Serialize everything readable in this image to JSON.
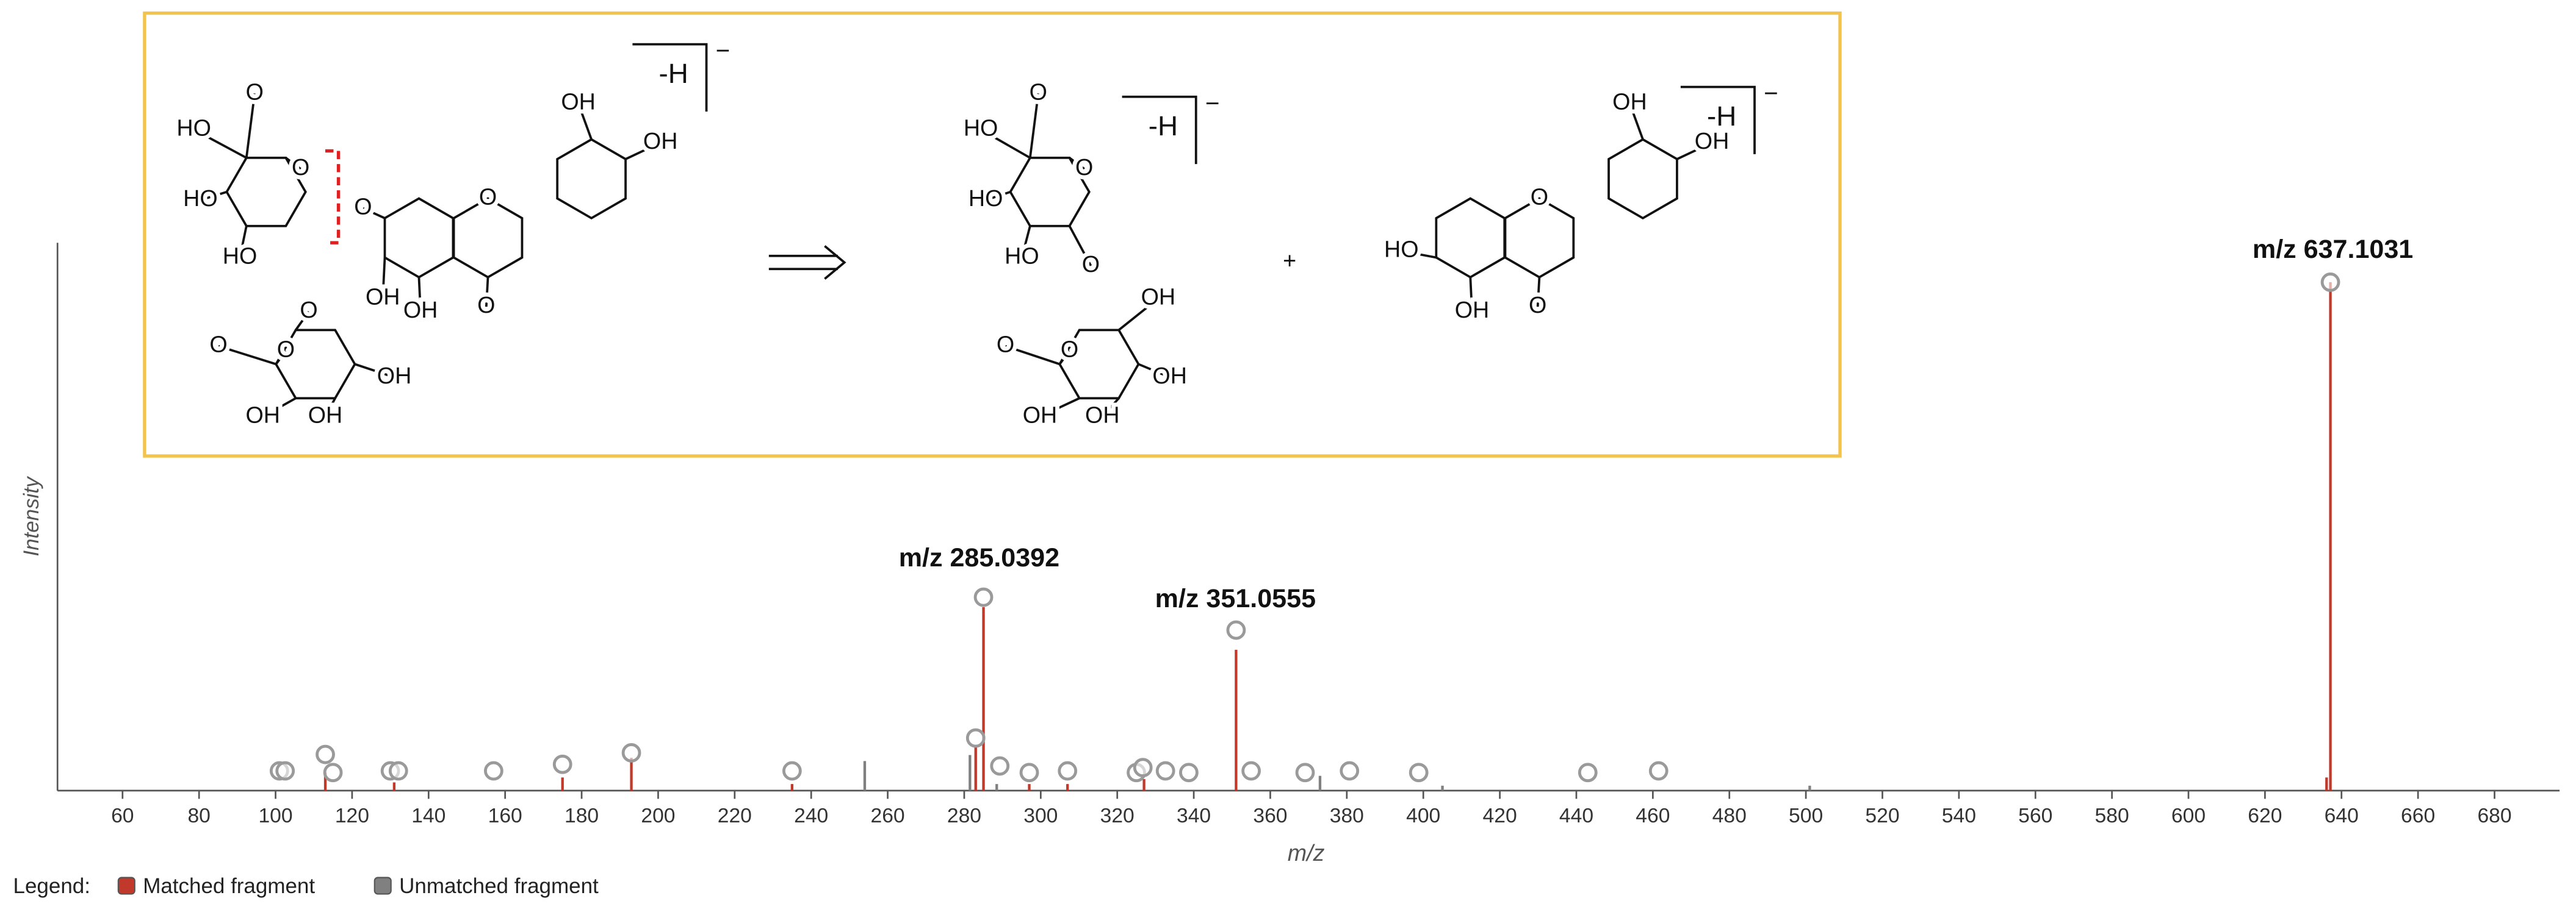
{
  "chart_data": {
    "type": "bar",
    "x_label": "m/z",
    "y_label": "Intensity",
    "xlim": [
      43,
      697
    ],
    "ylim": [
      0,
      100
    ],
    "xticks": [
      60,
      80,
      100,
      120,
      140,
      160,
      180,
      200,
      220,
      240,
      260,
      280,
      300,
      320,
      340,
      360,
      380,
      400,
      420,
      440,
      460,
      480,
      500,
      520,
      540,
      560,
      580,
      600,
      620,
      640,
      660,
      680
    ],
    "series": [
      {
        "name": "Matched fragment",
        "color": "#c0392b",
        "x": [
          113.0,
          131.0,
          175.0,
          193.0,
          235.0,
          283.0,
          285.04,
          297.0,
          307.0,
          327.0,
          351.06,
          636.1,
          637.1
        ],
        "values": [
          3.3,
          1.5,
          2.4,
          6.0,
          1.2,
          8.1,
          33.5,
          1.2,
          1.2,
          2.1,
          25.7,
          2.4,
          92.8
        ]
      },
      {
        "name": "Unmatched fragment",
        "color": "#808080",
        "x": [
          254.0,
          281.5,
          288.5,
          373.0,
          405.0,
          501.0
        ],
        "values": [
          5.4,
          6.5,
          1.2,
          2.7,
          0.9,
          0.9
        ]
      }
    ],
    "markers": {
      "color": "#9a9a9a",
      "x": [
        101.0,
        102.5,
        113.0,
        115.0,
        130.0,
        132.1,
        157.0,
        175.0,
        193.0,
        235.0,
        283.0,
        285.04,
        289.3,
        297.0,
        307.0,
        325.0,
        326.7,
        332.6,
        338.7,
        351.06,
        355.0,
        369.1,
        380.7,
        398.8,
        443.0,
        461.5,
        637.1
      ],
      "values": [
        3.6,
        3.6,
        6.6,
        3.3,
        3.6,
        3.6,
        3.6,
        4.8,
        6.9,
        3.6,
        9.6,
        35.3,
        4.5,
        3.3,
        3.6,
        3.3,
        4.2,
        3.6,
        3.3,
        29.3,
        3.6,
        3.3,
        3.6,
        3.3,
        3.3,
        3.6,
        92.8
      ]
    },
    "annotations": [
      "m/z 637.1031",
      "m/z 285.0392",
      "m/z 351.0555"
    ],
    "legend_title": "Legend:"
  },
  "scheme": {
    "plus": "+",
    "molecules": [
      {
        "ion": "-H",
        "charge": "−",
        "atoms": [
          "HO",
          "O",
          "O",
          "HO",
          "HO",
          "O",
          "O",
          "OH",
          "OH",
          "O",
          "OH",
          "O",
          "O",
          "OH",
          "O",
          "OH",
          "OH",
          "OH"
        ]
      },
      {
        "ion": "-H",
        "charge": "−",
        "atoms": [
          "HO",
          "O",
          "O",
          "HO",
          "HO",
          "O",
          "O",
          "OH",
          "O",
          "OH",
          "OH",
          "OH"
        ]
      },
      {
        "ion": "-H",
        "charge": "−",
        "atoms": [
          "HO",
          "O",
          "OH",
          "OH",
          "OH",
          "O"
        ]
      }
    ]
  }
}
